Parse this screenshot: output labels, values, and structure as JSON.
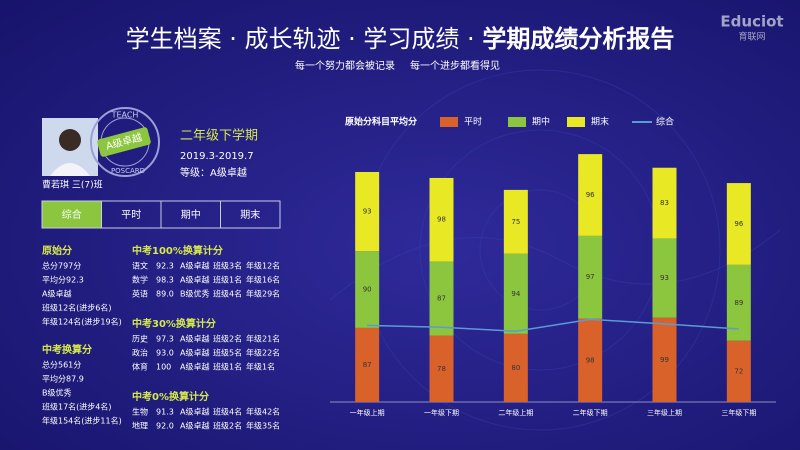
{
  "header": {
    "title": "学生档案 · 成长轨迹 · 学习成绩 · ",
    "title_bold": "学期成绩分析报告",
    "subtitle": [
      "每一个努力都会被记录",
      "每一个进步都看得见"
    ]
  },
  "logo": {
    "name": "Educiot",
    "sub": "育联网"
  },
  "profile": {
    "badge": "A级卓越",
    "badge_ring": [
      "TEACH",
      "POSCARD"
    ],
    "name": "曹若琪 三(7)班",
    "term": "二年级下学期",
    "dates": "2019.3-2019.7",
    "level": "等级：A级卓越"
  },
  "tabs": [
    "综合",
    "平时",
    "期中",
    "期末"
  ],
  "raw_score": {
    "title": "原始分",
    "items": [
      "总分797分",
      "平均分92.3",
      "A级卓越",
      "班级12名(进步6名)",
      "年级124名(进步19名)"
    ]
  },
  "converted_score": {
    "title": "中考换算分",
    "items": [
      "总分561分",
      "平均分87.9",
      "B级优秀",
      "班级17名(进步4名)",
      "年级154名(进步11名)"
    ]
  },
  "groups": [
    {
      "title": "中考100%换算计分",
      "rows": [
        [
          "语文",
          "92.3",
          "A级卓越",
          "班级3名",
          "年级12名"
        ],
        [
          "数学",
          "98.3",
          "A级卓越",
          "班级1名",
          "年级16名"
        ],
        [
          "英语",
          "89.0",
          "B级优秀",
          "班级4名",
          "年级29名"
        ]
      ]
    },
    {
      "title": "中考30%换算计分",
      "rows": [
        [
          "历史",
          "97.3",
          "A级卓越",
          "班级2名",
          "年级21名"
        ],
        [
          "政治",
          "93.0",
          "A级卓越",
          "班级5名",
          "年级22名"
        ],
        [
          "体育",
          "100",
          "A级卓越",
          "班级1名",
          "年级1名"
        ]
      ]
    },
    {
      "title": "中考0%换算计分",
      "rows": [
        [
          "生物",
          "91.3",
          "A级卓越",
          "班级4名",
          "年级42名"
        ],
        [
          "地理",
          "92.0",
          "A级卓越",
          "班级2名",
          "年级35名"
        ]
      ]
    }
  ],
  "chart_data": {
    "type": "stacked-bar-line",
    "title": "原始分科目平均分",
    "categories": [
      "一年级上期",
      "一年级下期",
      "二年级上期",
      "二年级下期",
      "三年级上期",
      "三年级下期"
    ],
    "series": [
      {
        "name": "平时",
        "color": "#d9622b",
        "values": [
          87,
          78,
          80,
          98,
          99,
          72
        ]
      },
      {
        "name": "期中",
        "color": "#8cc63e",
        "values": [
          90,
          87,
          94,
          97,
          93,
          89
        ]
      },
      {
        "name": "期末",
        "color": "#e9e824",
        "values": [
          93,
          98,
          75,
          96,
          83,
          96
        ]
      },
      {
        "name": "综合",
        "color": "#5b9bd5",
        "type": "line",
        "values": [
          90,
          87.7,
          83,
          97,
          91.7,
          85.7
        ]
      }
    ]
  }
}
